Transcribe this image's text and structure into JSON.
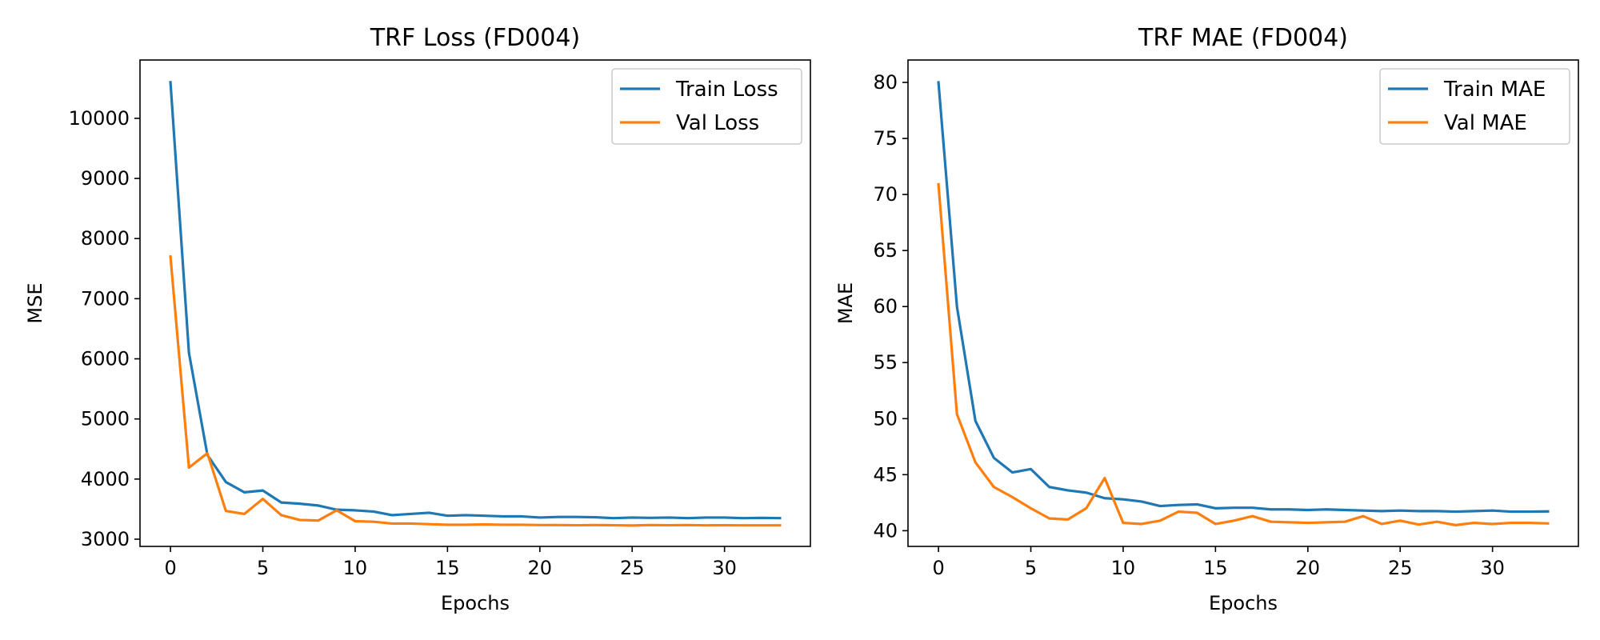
{
  "chart_data": [
    {
      "type": "line",
      "title": "TRF Loss (FD004)",
      "xlabel": "Epochs",
      "ylabel": "MSE",
      "xlim": [
        -1.65,
        34.65
      ],
      "ylim": [
        2880,
        10970
      ],
      "xticks": [
        0,
        5,
        10,
        15,
        20,
        25,
        30
      ],
      "yticks": [
        3000,
        4000,
        5000,
        6000,
        7000,
        8000,
        9000,
        10000
      ],
      "grid": false,
      "legend_position": "top-right",
      "x": [
        0,
        1,
        2,
        3,
        4,
        5,
        6,
        7,
        8,
        9,
        10,
        11,
        12,
        13,
        14,
        15,
        16,
        17,
        18,
        19,
        20,
        21,
        22,
        23,
        24,
        25,
        26,
        27,
        28,
        29,
        30,
        31,
        32,
        33
      ],
      "series": [
        {
          "name": "Train Loss",
          "color": "#1f77b4",
          "values": [
            10600,
            6100,
            4400,
            3950,
            3780,
            3810,
            3610,
            3590,
            3560,
            3490,
            3480,
            3460,
            3400,
            3420,
            3440,
            3390,
            3400,
            3390,
            3380,
            3380,
            3360,
            3370,
            3370,
            3365,
            3350,
            3360,
            3355,
            3360,
            3350,
            3360,
            3360,
            3350,
            3355,
            3350
          ]
        },
        {
          "name": "Val Loss",
          "color": "#ff7f0e",
          "values": [
            7700,
            4190,
            4430,
            3470,
            3420,
            3670,
            3400,
            3320,
            3310,
            3480,
            3300,
            3290,
            3260,
            3260,
            3250,
            3240,
            3240,
            3245,
            3240,
            3240,
            3235,
            3235,
            3232,
            3235,
            3232,
            3228,
            3235,
            3232,
            3235,
            3230,
            3232,
            3230,
            3230,
            3230
          ]
        }
      ]
    },
    {
      "type": "line",
      "title": "TRF MAE (FD004)",
      "xlabel": "Epochs",
      "ylabel": "MAE",
      "xlim": [
        -1.65,
        34.65
      ],
      "ylim": [
        38.6,
        82.0
      ],
      "xticks": [
        0,
        5,
        10,
        15,
        20,
        25,
        30
      ],
      "yticks": [
        40,
        45,
        50,
        55,
        60,
        65,
        70,
        75,
        80
      ],
      "grid": false,
      "legend_position": "top-right",
      "x": [
        0,
        1,
        2,
        3,
        4,
        5,
        6,
        7,
        8,
        9,
        10,
        11,
        12,
        13,
        14,
        15,
        16,
        17,
        18,
        19,
        20,
        21,
        22,
        23,
        24,
        25,
        26,
        27,
        28,
        29,
        30,
        31,
        32,
        33
      ],
      "series": [
        {
          "name": "Train MAE",
          "color": "#1f77b4",
          "values": [
            80.0,
            60.0,
            49.8,
            46.5,
            45.2,
            45.5,
            43.9,
            43.6,
            43.4,
            42.9,
            42.8,
            42.6,
            42.2,
            42.3,
            42.35,
            42.0,
            42.05,
            42.05,
            41.9,
            41.9,
            41.85,
            41.9,
            41.85,
            41.8,
            41.75,
            41.8,
            41.75,
            41.75,
            41.7,
            41.75,
            41.8,
            41.7,
            41.7,
            41.72
          ]
        },
        {
          "name": "Val MAE",
          "color": "#ff7f0e",
          "values": [
            70.9,
            50.4,
            46.1,
            43.9,
            43.0,
            42.0,
            41.1,
            41.0,
            42.0,
            44.7,
            40.7,
            40.6,
            40.9,
            41.7,
            41.6,
            40.6,
            40.9,
            41.3,
            40.8,
            40.75,
            40.7,
            40.75,
            40.8,
            41.3,
            40.6,
            40.9,
            40.55,
            40.8,
            40.5,
            40.7,
            40.6,
            40.7,
            40.7,
            40.65
          ]
        }
      ]
    }
  ]
}
